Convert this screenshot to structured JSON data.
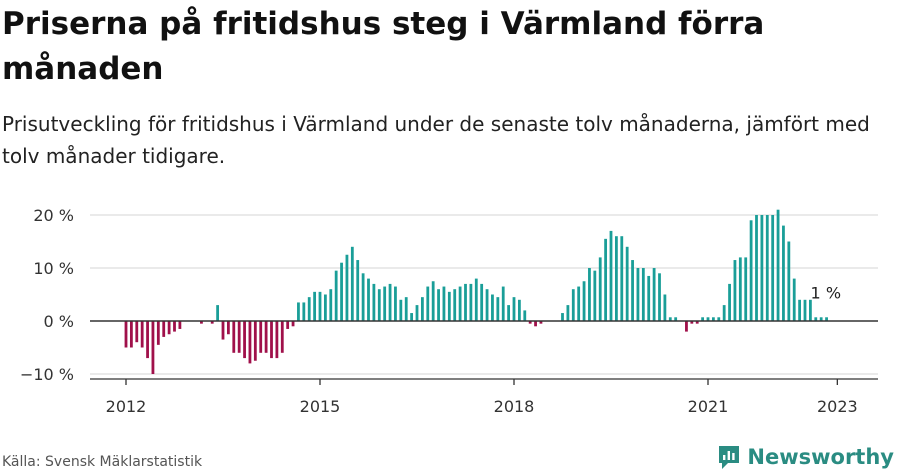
{
  "header": {
    "title": "Priserna på fritidshus steg i Värmland förra månaden",
    "subtitle": "Prisutveckling för fritidshus i Värmland under de senaste tolv månaderna, jämfört med tolv månader tidigare."
  },
  "footer": {
    "source": "Källa: Svensk Mäklarstatistik",
    "brand": "Newsworthy"
  },
  "colors": {
    "positive": "#1a9e98",
    "negative": "#a0104a",
    "brand": "#2a8c82",
    "grid": "#dddddd",
    "axis": "#333333"
  },
  "chart_data": {
    "type": "bar",
    "title": "Priserna på fritidshus steg i Värmland förra månaden",
    "subtitle": "Prisutveckling för fritidshus i Värmland under de senaste tolv månaderna, jämfört med tolv månader tidigare.",
    "ylabel": "",
    "xlabel": "",
    "ylim": [
      -12,
      21
    ],
    "x_range": [
      "2011-12",
      "2023-07"
    ],
    "yticks": [
      {
        "value": 20,
        "label": "20 %"
      },
      {
        "value": 10,
        "label": "10 %"
      },
      {
        "value": 0,
        "label": "0 %"
      },
      {
        "value": -10,
        "label": "−10 %"
      }
    ],
    "xticks": [
      {
        "date": "2012-01",
        "label": "2012"
      },
      {
        "date": "2015-01",
        "label": "2015"
      },
      {
        "date": "2018-01",
        "label": "2018"
      },
      {
        "date": "2021-01",
        "label": "2021"
      },
      {
        "date": "2023-01",
        "label": "2023"
      }
    ],
    "grid": true,
    "start": "2012-01",
    "values": [
      -5,
      -5,
      -4,
      -5,
      -7,
      -10,
      -4.5,
      -3,
      -2.5,
      -2,
      -1.5,
      0,
      0,
      0,
      -0.5,
      0,
      -0.5,
      3,
      -3.5,
      -2.5,
      -6,
      -6,
      -7,
      -8,
      -7.5,
      -6,
      -6,
      -7,
      -7,
      -6,
      -1.5,
      -1,
      3.5,
      3.5,
      4.5,
      5.5,
      5.5,
      5,
      6,
      9.5,
      11,
      12.5,
      14,
      11.5,
      9,
      8,
      7,
      6,
      6.5,
      7,
      6.5,
      4,
      4.5,
      1.5,
      3,
      4.5,
      6.5,
      7.5,
      6,
      6.5,
      5.5,
      6,
      6.5,
      7,
      7,
      8,
      7,
      6,
      5,
      4.5,
      6.5,
      3,
      4.5,
      4,
      2,
      -0.5,
      -1,
      -0.5,
      0,
      0,
      0,
      1.5,
      3,
      6,
      6.5,
      7.5,
      10,
      9.5,
      12,
      15.5,
      17,
      16,
      16,
      14,
      11.5,
      10,
      10,
      8.5,
      10,
      9,
      5,
      0.7,
      0.7,
      0,
      -2,
      -0.5,
      -0.5,
      0.7,
      0.7,
      0.7,
      0.7,
      3,
      7,
      11.5,
      12,
      12,
      19,
      20,
      20,
      20,
      20,
      21,
      18,
      15,
      8,
      4,
      4,
      4,
      0.7,
      0.7,
      0.7
    ],
    "annotation": {
      "index": 130,
      "label": "1 %"
    }
  }
}
